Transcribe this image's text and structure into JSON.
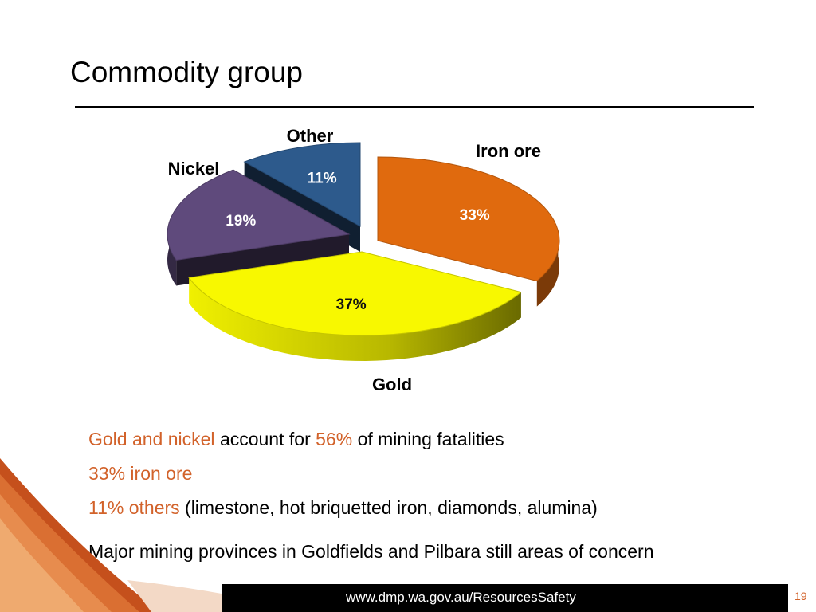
{
  "slide": {
    "title": "Commodity group",
    "bullets": {
      "line1_highlight": "Gold and nickel",
      "line1_text_a": "account for",
      "line1_pct": "56%",
      "line1_text_b": "of mining fatalities",
      "line2": "33% iron ore",
      "line3_highlight": "11% others",
      "line3_text": "(limestone, hot briquetted iron, diamonds, alumina)",
      "line4": "Major mining provinces in Goldfields and Pilbara still areas of concern"
    },
    "footer": {
      "url": "www.dmp.wa.gov.au/ResourcesSafety",
      "page_number": "19"
    },
    "colors": {
      "accent": "#d2622a",
      "footer_bar": "#000000"
    }
  },
  "chart_data": {
    "type": "pie",
    "title": "",
    "categories": [
      "Iron ore",
      "Gold",
      "Nickel",
      "Other"
    ],
    "values": [
      33,
      37,
      19,
      11
    ],
    "value_labels": [
      "33%",
      "37%",
      "19%",
      "11%"
    ],
    "colors": [
      "#e06a0e",
      "#f8f800",
      "#5f4a7c",
      "#2d5a8c"
    ],
    "exploded": true,
    "style": "3d"
  }
}
